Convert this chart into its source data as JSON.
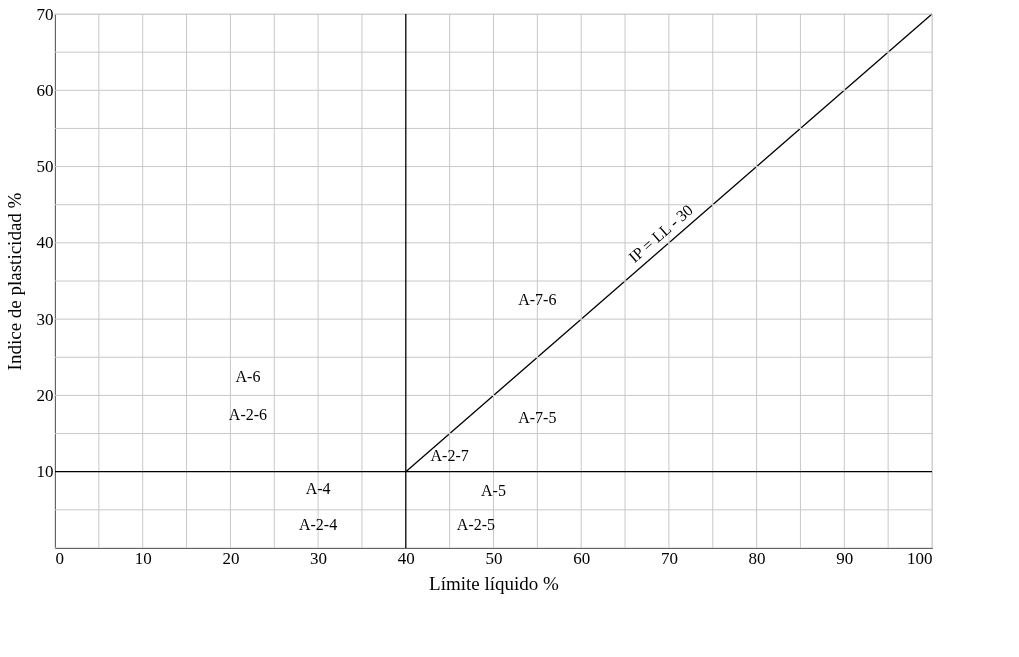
{
  "chart_data": {
    "type": "line",
    "xlabel": "Límite líquido %",
    "ylabel": "Indice de plasticidad %",
    "series": [
      {
        "x": [
          40,
          100
        ],
        "values": [
          10,
          70
        ],
        "color": "#000000"
      },
      {
        "x": [
          40,
          40
        ],
        "values": [
          0,
          70
        ],
        "color": "#000000"
      },
      {
        "x": [
          0,
          100
        ],
        "values": [
          10,
          10
        ],
        "color": "#000000"
      }
    ],
    "annotations": [
      {
        "text": "IP = LL - 30",
        "x": 70,
        "y": 40
      },
      "A-6",
      "A-2-6",
      "A-4",
      "A-2-4",
      "A-7-6",
      "A-7-5",
      "A-2-7",
      "A-5",
      "A-2-5"
    ],
    "xlim": [
      0,
      100
    ],
    "xticks": [
      0,
      {
        "value": 5,
        "label": null
      },
      10,
      {
        "value": 15,
        "label": null
      },
      20,
      {
        "value": 25,
        "label": null
      },
      30,
      {
        "value": 35,
        "label": null
      },
      40,
      {
        "value": 45,
        "label": null
      },
      50,
      {
        "value": 55,
        "label": null
      },
      60,
      {
        "value": 65,
        "label": null
      },
      70,
      {
        "value": 75,
        "label": null
      },
      80,
      {
        "value": 85,
        "label": null
      },
      90,
      {
        "value": 95,
        "label": null
      },
      100
    ],
    "ylim": [
      0,
      70
    ],
    "yticks": [
      {
        "value": 0,
        "label": null
      },
      {
        "value": 5,
        "label": null
      },
      10,
      {
        "value": 15,
        "label": null
      },
      20,
      {
        "value": 25,
        "label": null
      },
      30,
      {
        "value": 35,
        "label": null
      },
      40,
      {
        "value": 45,
        "label": null
      },
      50,
      {
        "value": 55,
        "label": null
      },
      60,
      {
        "value": 65,
        "label": null
      },
      70
    ],
    "grid": true,
    "marker": "none",
    "line_style": "solid"
  }
}
